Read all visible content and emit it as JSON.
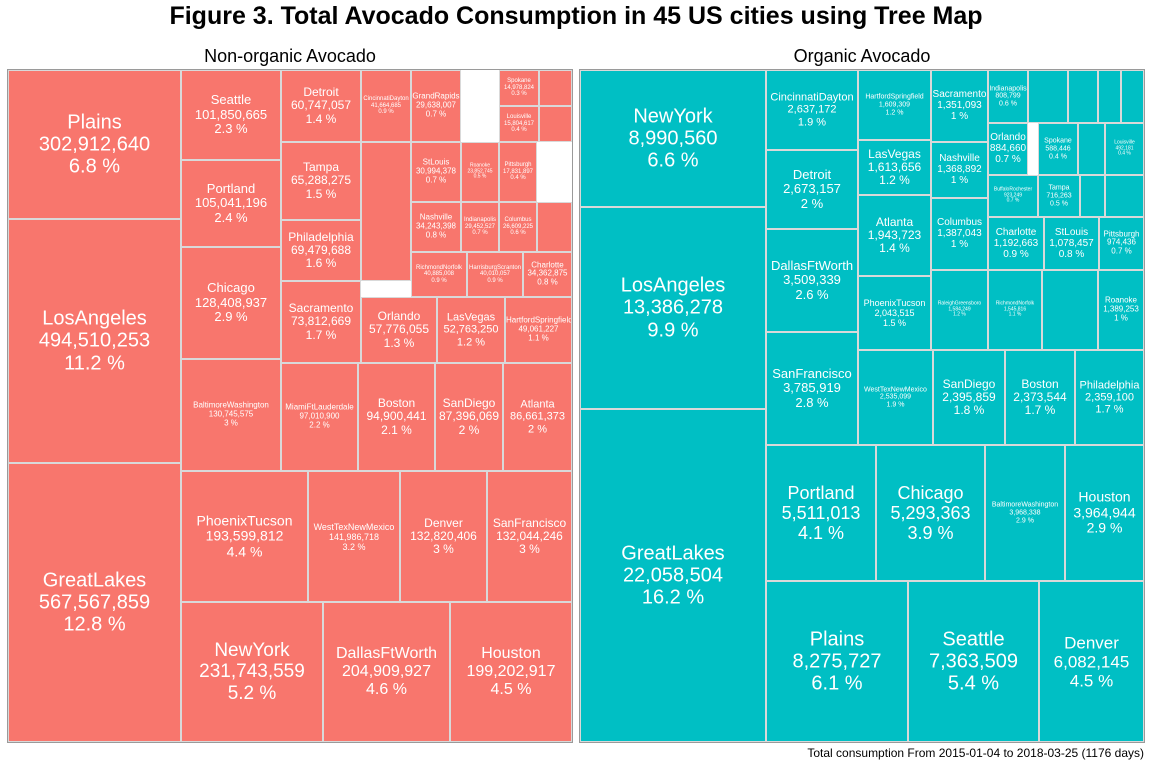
{
  "title": "Figure 3. Total Avocado Consumption in 45 US cities using Tree Map",
  "caption": "Total consumption From 2015-01-04 to 2018-03-25 (1176 days)",
  "chart_data": [
    {
      "type": "treemap",
      "subtitle": "Non-organic Avocado",
      "color": "#F8766D",
      "tiles": [
        {
          "name": "GreatLakes",
          "value": "567,567,859",
          "pct": "12.8 %"
        },
        {
          "name": "LosAngeles",
          "value": "494,510,253",
          "pct": "11.2 %"
        },
        {
          "name": "Plains",
          "value": "302,912,640",
          "pct": "6.8 %"
        },
        {
          "name": "NewYork",
          "value": "231,743,559",
          "pct": "5.2 %"
        },
        {
          "name": "DallasFtWorth",
          "value": "204,909,927",
          "pct": "4.6 %"
        },
        {
          "name": "Houston",
          "value": "199,202,917",
          "pct": "4.5 %"
        },
        {
          "name": "PhoenixTucson",
          "value": "193,599,812",
          "pct": "4.4 %"
        },
        {
          "name": "WestTexNewMexico",
          "value": "141,986,718",
          "pct": "3.2 %"
        },
        {
          "name": "Denver",
          "value": "132,820,406",
          "pct": "3 %"
        },
        {
          "name": "SanFrancisco",
          "value": "132,044,246",
          "pct": "3 %"
        },
        {
          "name": "BaltimoreWashington",
          "value": "130,745,575",
          "pct": "3 %"
        },
        {
          "name": "Chicago",
          "value": "128,408,937",
          "pct": "2.9 %"
        },
        {
          "name": "Portland",
          "value": "105,041,196",
          "pct": "2.4 %"
        },
        {
          "name": "Seattle",
          "value": "101,850,665",
          "pct": "2.3 %"
        },
        {
          "name": "MiamiFtLauderdale",
          "value": "97,010,900",
          "pct": "2.2 %"
        },
        {
          "name": "Boston",
          "value": "94,900,441",
          "pct": "2.1 %"
        },
        {
          "name": "SanDiego",
          "value": "87,396,069",
          "pct": "2 %"
        },
        {
          "name": "Atlanta",
          "value": "86,661,373",
          "pct": "2 %"
        },
        {
          "name": "Sacramento",
          "value": "73,812,669",
          "pct": "1.7 %"
        },
        {
          "name": "Philadelphia",
          "value": "69,479,688",
          "pct": "1.6 %"
        },
        {
          "name": "Tampa",
          "value": "65,288,275",
          "pct": "1.5 %"
        },
        {
          "name": "Detroit",
          "value": "60,747,057",
          "pct": "1.4 %"
        },
        {
          "name": "Orlando",
          "value": "57,776,055",
          "pct": "1.3 %"
        },
        {
          "name": "LasVegas",
          "value": "52,763,250",
          "pct": "1.2 %"
        },
        {
          "name": "HartfordSpringfield",
          "value": "49,061,227",
          "pct": "1.1 %"
        },
        {
          "name": "CincinnatiDayton",
          "value": "41,664,685",
          "pct": "0.9 %"
        },
        {
          "name": "GrandRapids",
          "value": "29,638,007",
          "pct": "0.7 %"
        },
        {
          "name": "StLouis",
          "value": "30,994,378",
          "pct": "0.7 %"
        },
        {
          "name": "Nashville",
          "value": "34,243,398",
          "pct": "0.8 %"
        },
        {
          "name": "RichmondNorfolk",
          "value": "40,885,008",
          "pct": "0.9 %"
        },
        {
          "name": "HarrisburgScranton",
          "value": "40,010,057",
          "pct": "0.9 %"
        },
        {
          "name": "Charlotte",
          "value": "34,362,875",
          "pct": "0.8 %"
        },
        {
          "name": "Roanoke",
          "value": "23,852,745",
          "pct": "0.5 %"
        },
        {
          "name": "Indianapolis",
          "value": "29,452,527",
          "pct": "0.7 %"
        },
        {
          "name": "Columbus",
          "value": "26,609,225",
          "pct": "0.6 %"
        },
        {
          "name": "Spokane",
          "value": "14,978,824",
          "pct": "0.3 %"
        },
        {
          "name": "Louisville",
          "value": "15,804,617",
          "pct": "0.4 %"
        },
        {
          "name": "Pittsburgh",
          "value": "17,831,897",
          "pct": "0.4 %"
        }
      ]
    },
    {
      "type": "treemap",
      "subtitle": "Organic Avocado",
      "color": "#00BFC4",
      "tiles": [
        {
          "name": "GreatLakes",
          "value": "22,058,504",
          "pct": "16.2 %"
        },
        {
          "name": "LosAngeles",
          "value": "13,386,278",
          "pct": "9.9 %"
        },
        {
          "name": "NewYork",
          "value": "8,990,560",
          "pct": "6.6 %"
        },
        {
          "name": "Plains",
          "value": "8,275,727",
          "pct": "6.1 %"
        },
        {
          "name": "Seattle",
          "value": "7,363,509",
          "pct": "5.4 %"
        },
        {
          "name": "Denver",
          "value": "6,082,145",
          "pct": "4.5 %"
        },
        {
          "name": "Portland",
          "value": "5,511,013",
          "pct": "4.1 %"
        },
        {
          "name": "Chicago",
          "value": "5,293,363",
          "pct": "3.9 %"
        },
        {
          "name": "BaltimoreWashington",
          "value": "3,968,338",
          "pct": "2.9 %"
        },
        {
          "name": "Houston",
          "value": "3,964,944",
          "pct": "2.9 %"
        },
        {
          "name": "SanFrancisco",
          "value": "3,785,919",
          "pct": "2.8 %"
        },
        {
          "name": "DallasFtWorth",
          "value": "3,509,339",
          "pct": "2.6 %"
        },
        {
          "name": "Detroit",
          "value": "2,673,157",
          "pct": "2 %"
        },
        {
          "name": "CincinnatiDayton",
          "value": "2,637,172",
          "pct": "1.9 %"
        },
        {
          "name": "WestTexNewMexico",
          "value": "2,535,099",
          "pct": "1.9 %"
        },
        {
          "name": "SanDiego",
          "value": "2,395,859",
          "pct": "1.8 %"
        },
        {
          "name": "Boston",
          "value": "2,373,544",
          "pct": "1.7 %"
        },
        {
          "name": "Philadelphia",
          "value": "2,359,100",
          "pct": "1.7 %"
        },
        {
          "name": "PhoenixTucson",
          "value": "2,043,515",
          "pct": "1.5 %"
        },
        {
          "name": "Atlanta",
          "value": "1,943,723",
          "pct": "1.4 %"
        },
        {
          "name": "LasVegas",
          "value": "1,613,656",
          "pct": "1.2 %"
        },
        {
          "name": "HartfordSpringfield",
          "value": "1,609,309",
          "pct": "1.2 %"
        },
        {
          "name": "RaleighGreensboro",
          "value": "1,584,249",
          "pct": "1.2 %"
        },
        {
          "name": "RichmondNorfolk",
          "value": "1,545,816",
          "pct": "1.1 %"
        },
        {
          "name": "Columbus",
          "value": "1,387,043",
          "pct": "1 %"
        },
        {
          "name": "Roanoke",
          "value": "1,389,253",
          "pct": "1 %"
        },
        {
          "name": "Nashville",
          "value": "1,368,892",
          "pct": "1 %"
        },
        {
          "name": "Sacramento",
          "value": "1,351,093",
          "pct": "1 %"
        },
        {
          "name": "Charlotte",
          "value": "1,192,663",
          "pct": "0.9 %"
        },
        {
          "name": "StLouis",
          "value": "1,078,457",
          "pct": "0.8 %"
        },
        {
          "name": "Pittsburgh",
          "value": "974,436",
          "pct": "0.7 %"
        },
        {
          "name": "Orlando",
          "value": "884,660",
          "pct": "0.7 %"
        },
        {
          "name": "Indianapolis",
          "value": "808,799",
          "pct": "0.6 %"
        },
        {
          "name": "BuffaloRochester",
          "value": "923,249",
          "pct": "0.7 %"
        },
        {
          "name": "Tampa",
          "value": "716,263",
          "pct": "0.5 %"
        },
        {
          "name": "Spokane",
          "value": "588,446",
          "pct": "0.4 %"
        },
        {
          "name": "Louisville",
          "value": "492,181",
          "pct": "0.4 %"
        }
      ]
    }
  ]
}
